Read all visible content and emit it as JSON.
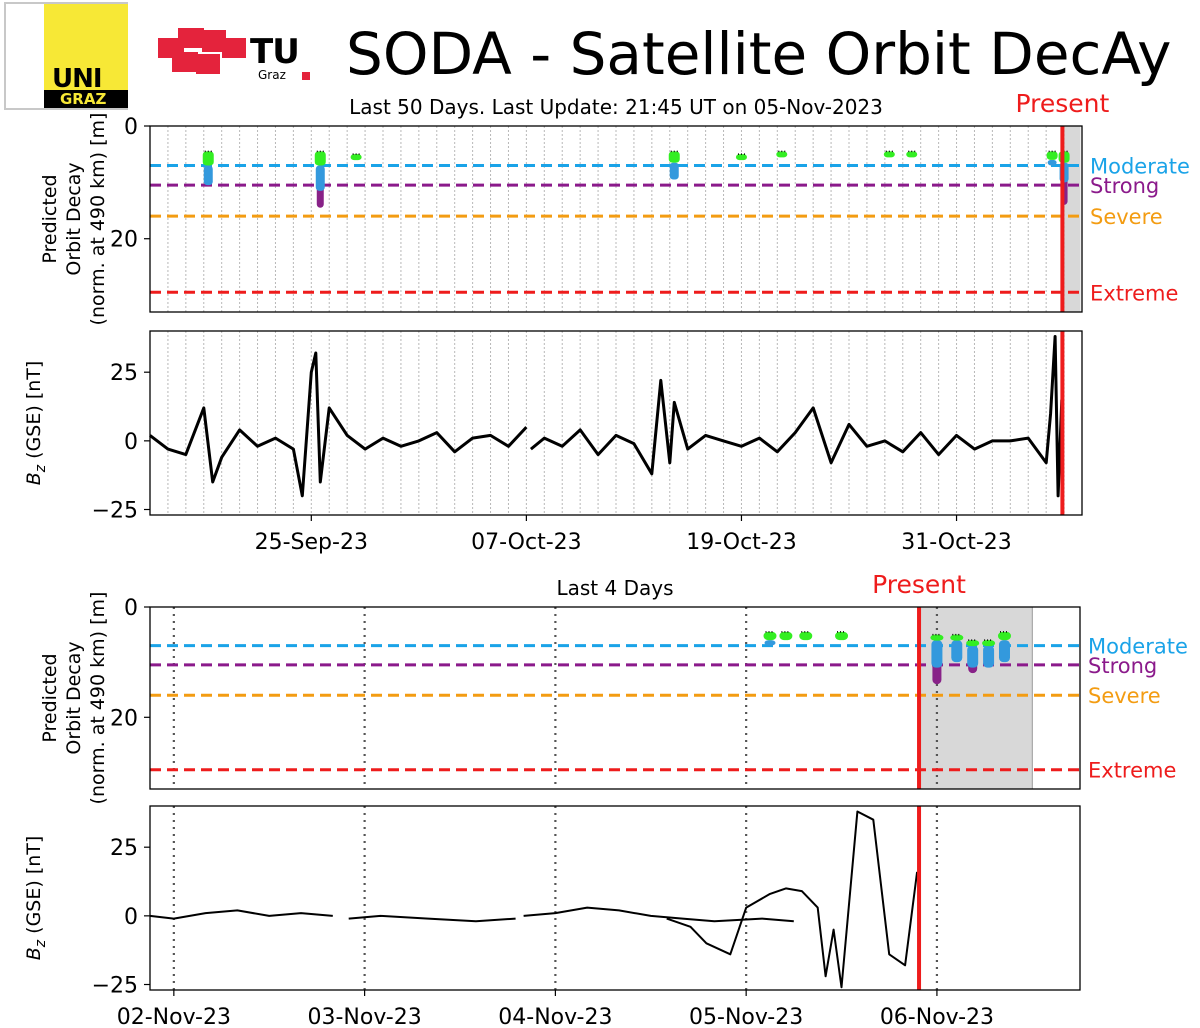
{
  "header": {
    "title": "SODA - Satellite Orbit DecAy",
    "logo_uni_line1": "UNI",
    "logo_uni_line2": "GRAZ",
    "logo_tu_text": "TU",
    "logo_tu_sub": "Graz"
  },
  "colors": {
    "moderate": "#1aa3e8",
    "strong": "#8b1a8b",
    "severe": "#f39c12",
    "extreme": "#ee1c1c",
    "present": "#ee1c1c",
    "green_marker": "#33ee22",
    "blue_marker": "#3399dd",
    "purple_marker": "#882288",
    "forecast_shade": "#d8d8d8",
    "tu_red": "#e4233c",
    "uni_yellow": "#f7e836"
  },
  "chart_data": [
    {
      "id": "top-decay",
      "type": "scatter",
      "title": "Last 50 Days. Last Update: 21:45 UT on 05-Nov-2023",
      "present_label": "Present",
      "ylabel": [
        "Predicted",
        "Orbit Decay",
        "(norm. at 490 km) [m]"
      ],
      "ylim": [
        0,
        33
      ],
      "y_inverted": true,
      "yticks": [
        0,
        20
      ],
      "xlim": [
        "2023-09-16",
        "2023-11-07"
      ],
      "present": "2023-11-05T21:45",
      "forecast_end": "2023-11-06T22:00",
      "day_gridlines": "dotted, daily",
      "thresholds": [
        {
          "name": "Moderate",
          "value": 7
        },
        {
          "name": "Strong",
          "value": 10.5
        },
        {
          "name": "Severe",
          "value": 16
        },
        {
          "name": "Extreme",
          "value": 29.5
        }
      ],
      "events": [
        {
          "x": "2023-09-19T06:00",
          "green_top": 4.5,
          "green_bottom": 7,
          "blue_bottom": 10.5,
          "purple_bottom": 0
        },
        {
          "x": "2023-09-25T12:00",
          "green_top": 4.5,
          "green_bottom": 7,
          "blue_bottom": 11.5,
          "purple_bottom": 14.5
        },
        {
          "x": "2023-09-27T12:00",
          "green_top": 5,
          "green_bottom": 6,
          "blue_bottom": 0,
          "purple_bottom": 0
        },
        {
          "x": "2023-10-15T06:00",
          "green_top": 4.5,
          "green_bottom": 6.5,
          "blue_bottom": 9.5,
          "purple_bottom": 0
        },
        {
          "x": "2023-10-19T00:00",
          "green_top": 5,
          "green_bottom": 6,
          "blue_bottom": 0,
          "purple_bottom": 0
        },
        {
          "x": "2023-10-21T06:00",
          "green_top": 4.5,
          "green_bottom": 5.5,
          "blue_bottom": 0,
          "purple_bottom": 0
        },
        {
          "x": "2023-10-27T06:00",
          "green_top": 4.5,
          "green_bottom": 5.5,
          "blue_bottom": 0,
          "purple_bottom": 0
        },
        {
          "x": "2023-10-28T12:00",
          "green_top": 4.5,
          "green_bottom": 5.5,
          "blue_bottom": 0,
          "purple_bottom": 0
        },
        {
          "x": "2023-11-05T08:00",
          "green_top": 4.5,
          "green_bottom": 6,
          "blue_bottom": 7,
          "purple_bottom": 0
        },
        {
          "x": "2023-11-06T00:00",
          "green_top": 4.5,
          "green_bottom": 6.5,
          "blue_bottom": 10,
          "purple_bottom": 14
        }
      ]
    },
    {
      "id": "top-bz",
      "type": "line",
      "ylabel": "B_z (GSE) [nT]",
      "ylim": [
        -27,
        40
      ],
      "yticks": [
        -25,
        0,
        25
      ],
      "xlim": [
        "2023-09-16",
        "2023-11-07"
      ],
      "present": "2023-11-05T21:45",
      "xticks": [
        "25-Sep-23",
        "07-Oct-23",
        "19-Oct-23",
        "31-Oct-23"
      ],
      "xtick_dates": [
        "2023-09-25",
        "2023-10-07",
        "2023-10-19",
        "2023-10-31"
      ],
      "series": [
        {
          "x": [
            "2023-09-16",
            "2023-09-17",
            "2023-09-18",
            "2023-09-19",
            "2023-09-19T12:00",
            "2023-09-20",
            "2023-09-21",
            "2023-09-22",
            "2023-09-23",
            "2023-09-24",
            "2023-09-24T12:00",
            "2023-09-25",
            "2023-09-25T06:00",
            "2023-09-25T12:00",
            "2023-09-26",
            "2023-09-27",
            "2023-09-28",
            "2023-09-29",
            "2023-09-30",
            "2023-10-01",
            "2023-10-02",
            "2023-10-03",
            "2023-10-04",
            "2023-10-05",
            "2023-10-06",
            "2023-10-07"
          ],
          "y": [
            2,
            -3,
            -5,
            12,
            -15,
            -6,
            4,
            -2,
            1,
            -3,
            -20,
            25,
            32,
            -15,
            12,
            2,
            -3,
            1,
            -2,
            0,
            3,
            -4,
            1,
            2,
            -2,
            5
          ]
        },
        {
          "x": [
            "2023-10-07T06:00",
            "2023-10-08",
            "2023-10-09",
            "2023-10-10",
            "2023-10-11",
            "2023-10-12",
            "2023-10-13",
            "2023-10-14",
            "2023-10-14T12:00",
            "2023-10-15",
            "2023-10-15T06:00",
            "2023-10-16",
            "2023-10-17",
            "2023-10-18",
            "2023-10-19",
            "2023-10-20",
            "2023-10-21",
            "2023-10-22",
            "2023-10-23",
            "2023-10-24",
            "2023-10-25",
            "2023-10-26",
            "2023-10-27",
            "2023-10-28",
            "2023-10-29",
            "2023-10-30",
            "2023-10-31",
            "2023-11-01",
            "2023-11-02",
            "2023-11-03",
            "2023-11-04",
            "2023-11-05",
            "2023-11-05T06:00",
            "2023-11-05T12:00",
            "2023-11-05T16:00",
            "2023-11-05T21:00"
          ],
          "y": [
            -3,
            1,
            -2,
            4,
            -5,
            2,
            -1,
            -12,
            22,
            -8,
            14,
            -3,
            2,
            0,
            -2,
            1,
            -4,
            3,
            12,
            -8,
            6,
            -2,
            0,
            -4,
            3,
            -5,
            2,
            -3,
            0,
            0,
            1,
            -8,
            10,
            38,
            -20,
            15
          ]
        }
      ]
    },
    {
      "id": "bottom-decay",
      "type": "scatter",
      "title": "Last 4 Days",
      "present_label": "Present",
      "ylabel": [
        "Predicted",
        "Orbit Decay",
        "(norm. at 490 km) [m]"
      ],
      "ylim": [
        0,
        33
      ],
      "y_inverted": true,
      "yticks": [
        0,
        20
      ],
      "xlim": [
        "2023-11-01T21:00",
        "2023-11-06T18:00"
      ],
      "present": "2023-11-05T21:45",
      "forecast_end": "2023-11-06T12:00",
      "thresholds": [
        {
          "name": "Moderate",
          "value": 7
        },
        {
          "name": "Strong",
          "value": 10.5
        },
        {
          "name": "Severe",
          "value": 16
        },
        {
          "name": "Extreme",
          "value": 29.5
        }
      ],
      "events": [
        {
          "x": "2023-11-05T03:00",
          "green_top": 4.5,
          "green_bottom": 6,
          "blue_bottom": 7,
          "purple_bottom": 0
        },
        {
          "x": "2023-11-05T05:00",
          "green_top": 4.5,
          "green_bottom": 6,
          "blue_bottom": 0,
          "purple_bottom": 0
        },
        {
          "x": "2023-11-05T07:30",
          "green_top": 4.5,
          "green_bottom": 6,
          "blue_bottom": 0,
          "purple_bottom": 0
        },
        {
          "x": "2023-11-05T12:00",
          "green_top": 4.5,
          "green_bottom": 6,
          "blue_bottom": 0,
          "purple_bottom": 0
        },
        {
          "x": "2023-11-06T00:00",
          "green_top": 5,
          "green_bottom": 6,
          "blue_bottom": 11,
          "purple_bottom": 14
        },
        {
          "x": "2023-11-06T02:30",
          "green_top": 5,
          "green_bottom": 6,
          "blue_bottom": 10,
          "purple_bottom": 0
        },
        {
          "x": "2023-11-06T04:30",
          "green_top": 6,
          "green_bottom": 7,
          "blue_bottom": 11,
          "purple_bottom": 12
        },
        {
          "x": "2023-11-06T06:30",
          "green_top": 6,
          "green_bottom": 7,
          "blue_bottom": 11,
          "purple_bottom": 0
        },
        {
          "x": "2023-11-06T08:30",
          "green_top": 4.5,
          "green_bottom": 6,
          "blue_bottom": 10,
          "purple_bottom": 0
        }
      ]
    },
    {
      "id": "bottom-bz",
      "type": "line",
      "ylabel": "B_z (GSE) [nT]",
      "ylim": [
        -27,
        40
      ],
      "yticks": [
        -25,
        0,
        25
      ],
      "xlim": [
        "2023-11-01T21:00",
        "2023-11-06T18:00"
      ],
      "present": "2023-11-05T21:45",
      "xticks": [
        "02-Nov-23",
        "03-Nov-23",
        "04-Nov-23",
        "05-Nov-23",
        "06-Nov-23"
      ],
      "xtick_dates": [
        "2023-11-02",
        "2023-11-03",
        "2023-11-04",
        "2023-11-05",
        "2023-11-06"
      ],
      "series": [
        {
          "x": [
            "2023-11-01T21:00",
            "2023-11-02T00:00",
            "2023-11-02T04:00",
            "2023-11-02T08:00",
            "2023-11-02T12:00",
            "2023-11-02T16:00",
            "2023-11-02T20:00"
          ],
          "y": [
            0,
            -1,
            1,
            2,
            0,
            1,
            0
          ]
        },
        {
          "x": [
            "2023-11-02T22:00",
            "2023-11-03T02:00",
            "2023-11-03T08:00",
            "2023-11-03T14:00",
            "2023-11-03T19:00"
          ],
          "y": [
            -1,
            0,
            -1,
            -2,
            -1
          ]
        },
        {
          "x": [
            "2023-11-03T20:00",
            "2023-11-04T00:00",
            "2023-11-04T04:00",
            "2023-11-04T08:00",
            "2023-11-04T12:00",
            "2023-11-04T16:00",
            "2023-11-04T20:00",
            "2023-11-05T02:00",
            "2023-11-05T06:00"
          ],
          "y": [
            0,
            1,
            3,
            2,
            0,
            -1,
            -2,
            -1,
            -2
          ]
        },
        {
          "x": [
            "2023-11-04T14:00",
            "2023-11-04T17:00",
            "2023-11-04T19:00",
            "2023-11-04T22:00",
            "2023-11-05T00:00",
            "2023-11-05T03:00",
            "2023-11-05T05:00",
            "2023-11-05T07:00",
            "2023-11-05T09:00",
            "2023-11-05T10:00",
            "2023-11-05T11:00",
            "2023-11-05T12:00",
            "2023-11-05T14:00",
            "2023-11-05T16:00",
            "2023-11-05T18:00",
            "2023-11-05T20:00",
            "2023-11-05T21:30"
          ],
          "y": [
            -1,
            -4,
            -10,
            -14,
            3,
            8,
            10,
            9,
            3,
            -22,
            -5,
            -26,
            38,
            35,
            -14,
            -18,
            16
          ]
        }
      ]
    }
  ]
}
